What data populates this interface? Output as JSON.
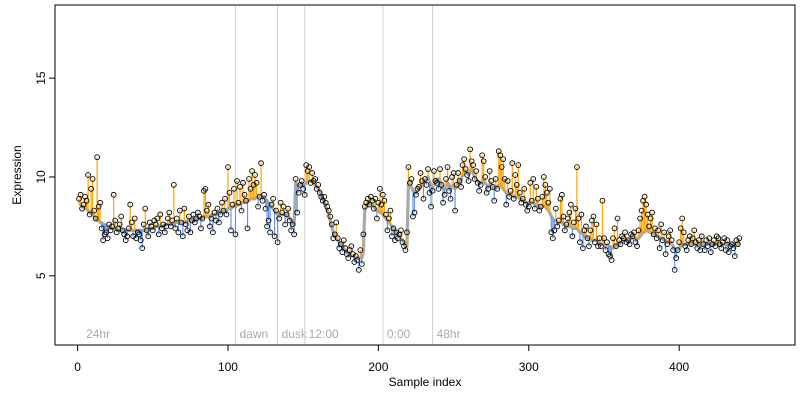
{
  "chart_data": {
    "type": "scatter",
    "title": "",
    "xlabel": "Sample index",
    "ylabel": "Expression",
    "xlim": [
      -15,
      477
    ],
    "ylim": [
      1.5,
      18.7
    ],
    "x_ticks": [
      0,
      100,
      200,
      300,
      400
    ],
    "x_tick_labels": [
      "0",
      "100",
      "200",
      "300",
      "400"
    ],
    "y_ticks": [
      5,
      10,
      15
    ],
    "y_tick_labels": [
      "5",
      "10",
      "15"
    ],
    "grid": false,
    "legend": "none",
    "phase_markers": [
      {
        "x": 3,
        "label": "24hr",
        "line": false
      },
      {
        "x": 105,
        "label": "dawn",
        "line": true
      },
      {
        "x": 133,
        "label": "dusk",
        "line": true
      },
      {
        "x": 151,
        "label": "12:00",
        "line": true
      },
      {
        "x": 203,
        "label": "0:00",
        "line": true
      },
      {
        "x": 236,
        "label": "48hr",
        "line": true
      }
    ],
    "series": [
      {
        "role": "observed",
        "render": "circles",
        "x_start": 1,
        "x_step": 1,
        "values": [
          8.9,
          9.1,
          8.4,
          8.6,
          9.0,
          8.8,
          10.1,
          8.1,
          9.4,
          9.9,
          8.3,
          7.9,
          11.0,
          8.5,
          8.7,
          7.4,
          6.8,
          7.1,
          7.2,
          6.9,
          7.6,
          7.3,
          7.5,
          9.1,
          7.8,
          7.2,
          7.4,
          7.6,
          8.0,
          7.3,
          7.1,
          6.8,
          7.0,
          7.4,
          8.6,
          7.7,
          7.0,
          7.9,
          6.9,
          7.2,
          7.1,
          6.8,
          6.4,
          7.6,
          8.4,
          7.3,
          7.0,
          7.7,
          7.5,
          7.3,
          7.8,
          7.6,
          7.9,
          7.1,
          8.1,
          7.4,
          7.6,
          7.2,
          7.5,
          7.9,
          8.2,
          7.5,
          7.8,
          9.6,
          7.4,
          7.9,
          7.2,
          8.3,
          7.7,
          7.0,
          8.4,
          7.6,
          7.3,
          8.0,
          7.2,
          7.8,
          8.1,
          7.7,
          7.9,
          8.2,
          8.0,
          7.4,
          7.9,
          9.3,
          9.4,
          8.3,
          8.6,
          7.5,
          7.9,
          7.2,
          8.2,
          7.8,
          8.4,
          7.7,
          8.1,
          8.7,
          8.3,
          8.9,
          8.1,
          10.5,
          9.2,
          7.3,
          8.6,
          9.4,
          7.1,
          9.8,
          8.7,
          9.5,
          8.3,
          9.7,
          9.1,
          8.8,
          7.4,
          9.9,
          9.4,
          10.3,
          9.6,
          10.1,
          9.7,
          8.5,
          9.0,
          10.7,
          8.8,
          9.1,
          8.4,
          7.5,
          7.8,
          7.2,
          8.6,
          8.9,
          7.0,
          8.3,
          6.7,
          7.9,
          8.7,
          8.2,
          8.5,
          7.6,
          8.1,
          8.4,
          7.8,
          7.3,
          7.6,
          7.1,
          9.9,
          8.2,
          9.2,
          9.6,
          9.8,
          9.4,
          9.1,
          10.6,
          10.3,
          10.5,
          9.7,
          10.2,
          9.8,
          9.9,
          9.4,
          9.6,
          9.2,
          9.0,
          8.8,
          9.0,
          8.7,
          8.5,
          8.3,
          8.0,
          7.6,
          6.9,
          7.1,
          7.7,
          6.9,
          6.4,
          6.6,
          6.2,
          6.8,
          6.4,
          6.1,
          5.9,
          6.3,
          6.5,
          6.1,
          5.7,
          6.0,
          5.8,
          5.3,
          6.3,
          5.6,
          7.1,
          8.5,
          8.7,
          8.9,
          8.6,
          9.0,
          8.8,
          8.4,
          8.9,
          7.9,
          8.7,
          9.4,
          8.6,
          9.1,
          8.8,
          8.1,
          7.3,
          7.9,
          8.3,
          7.0,
          7.4,
          6.8,
          7.2,
          6.9,
          7.1,
          7.3,
          6.7,
          6.5,
          6.3,
          7.2,
          10.5,
          9.7,
          9.9,
          8.0,
          8.2,
          9.1,
          9.4,
          9.5,
          10.2,
          9.8,
          8.9,
          9.9,
          9.6,
          10.4,
          9.2,
          8.5,
          9.3,
          10.3,
          9.8,
          9.7,
          9.4,
          10.4,
          9.6,
          8.7,
          9.1,
          9.9,
          10.5,
          9.3,
          8.9,
          10.0,
          10.2,
          8.3,
          9.6,
          10.2,
          9.8,
          9.5,
          10.6,
          10.9,
          10.4,
          10.1,
          9.8,
          11.4,
          10.8,
          10.6,
          9.9,
          10.3,
          9.7,
          9.3,
          9.6,
          11.1,
          10.8,
          10.0,
          9.2,
          9.4,
          10.3,
          9.8,
          9.5,
          8.8,
          9.9,
          9.4,
          11.3,
          11.1,
          10.5,
          10.9,
          9.9,
          8.6,
          9.8,
          9.0,
          9.3,
          10.7,
          8.9,
          10.1,
          9.6,
          10.6,
          9.2,
          8.7,
          8.9,
          9.4,
          8.6,
          8.3,
          8.5,
          9.7,
          8.8,
          9.9,
          8.4,
          9.5,
          8.9,
          8.3,
          8.5,
          9.0,
          10.0,
          9.6,
          9.2,
          8.7,
          9.4,
          7.2,
          6.9,
          7.3,
          8.4,
          7.5,
          7.8,
          8.9,
          9.1,
          8.0,
          7.3,
          7.6,
          7.9,
          8.2,
          8.6,
          7.0,
          7.7,
          8.4,
          10.5,
          7.9,
          6.7,
          8.1,
          6.4,
          7.3,
          7.5,
          6.9,
          6.5,
          7.3,
          7.8,
          8.0,
          6.7,
          7.6,
          6.5,
          6.9,
          6.5,
          8.8,
          6.9,
          6.3,
          6.7,
          6.1,
          6.0,
          5.8,
          6.9,
          7.4,
          6.5,
          7.9,
          6.8,
          6.6,
          7.0,
          6.9,
          7.2,
          6.7,
          6.8,
          6.6,
          7.1,
          7.0,
          7.2,
          6.7,
          6.5,
          7.3,
          7.9,
          8.3,
          8.8,
          9.0,
          8.6,
          8.1,
          7.5,
          7.9,
          8.2,
          7.1,
          7.4,
          6.9,
          7.3,
          6.4,
          7.6,
          6.8,
          7.2,
          6.1,
          6.6,
          7.0,
          7.3,
          6.8,
          6.3,
          5.3,
          5.9,
          6.3,
          6.7,
          7.4,
          7.9,
          7.2,
          6.5,
          6.3,
          6.8,
          7.0,
          6.6,
          6.9,
          7.3,
          6.7,
          6.4,
          6.8,
          6.3,
          7.0,
          6.6,
          6.3,
          6.8,
          6.5,
          6.9,
          6.2,
          6.6,
          6.8,
          6.5,
          7.0,
          6.9,
          6.6,
          6.4,
          6.7,
          6.9,
          6.3,
          6.8,
          6.2,
          6.5,
          6.6,
          6.4,
          6.0,
          6.8,
          6.6,
          6.9
        ]
      },
      {
        "role": "fitted",
        "render": "line",
        "x_start": 1,
        "x_step": 1,
        "values": [
          8.6,
          8.6,
          8.5,
          8.5,
          8.4,
          8.4,
          8.3,
          8.2,
          8.2,
          8.1,
          8.0,
          7.9,
          7.8,
          7.8,
          7.7,
          7.7,
          7.6,
          7.6,
          7.5,
          7.5,
          7.5,
          7.4,
          7.4,
          7.4,
          7.4,
          7.4,
          7.3,
          7.3,
          7.3,
          7.3,
          7.3,
          7.3,
          7.3,
          7.3,
          7.3,
          7.3,
          7.3,
          7.3,
          7.3,
          7.3,
          7.3,
          7.3,
          7.3,
          7.3,
          7.3,
          7.3,
          7.4,
          7.4,
          7.4,
          7.4,
          7.4,
          7.5,
          7.5,
          7.5,
          7.5,
          7.5,
          7.5,
          7.6,
          7.6,
          7.6,
          7.6,
          7.6,
          7.6,
          7.6,
          7.7,
          7.7,
          7.7,
          7.7,
          7.7,
          7.7,
          7.7,
          7.7,
          7.8,
          7.8,
          7.8,
          7.8,
          7.8,
          7.8,
          7.9,
          7.9,
          7.9,
          7.9,
          7.9,
          8.0,
          8.0,
          8.0,
          8.0,
          8.0,
          8.1,
          8.1,
          8.1,
          8.1,
          8.2,
          8.2,
          8.2,
          8.2,
          8.3,
          8.3,
          8.3,
          8.4,
          8.4,
          8.4,
          8.5,
          8.5,
          8.5,
          8.6,
          8.6,
          8.6,
          8.7,
          8.7,
          8.7,
          8.8,
          8.8,
          8.8,
          8.9,
          8.9,
          8.9,
          8.9,
          9.0,
          9.0,
          9.0,
          9.0,
          9.0,
          9.0,
          8.9,
          8.8,
          8.7,
          8.6,
          8.5,
          8.4,
          8.3,
          8.2,
          8.1,
          8.1,
          8.1,
          8.1,
          8.1,
          8.1,
          8.1,
          8.0,
          7.9,
          7.8,
          7.7,
          7.6,
          9.7,
          9.6,
          9.6,
          9.6,
          9.6,
          9.6,
          9.6,
          9.7,
          9.8,
          9.8,
          9.8,
          9.8,
          9.7,
          9.6,
          9.5,
          9.4,
          9.3,
          9.1,
          8.9,
          8.7,
          8.5,
          8.3,
          8.1,
          7.8,
          7.5,
          7.2,
          7.0,
          6.9,
          6.8,
          6.7,
          6.6,
          6.5,
          6.4,
          6.3,
          6.2,
          6.1,
          6.1,
          6.0,
          6.0,
          6.0,
          5.9,
          5.9,
          5.9,
          5.9,
          5.9,
          6.2,
          8.4,
          8.5,
          8.6,
          8.6,
          8.7,
          8.6,
          8.5,
          8.4,
          8.3,
          8.3,
          8.2,
          8.2,
          8.1,
          8.0,
          7.9,
          7.8,
          7.7,
          7.6,
          7.5,
          7.4,
          7.3,
          7.2,
          7.1,
          7.0,
          6.9,
          6.8,
          6.7,
          6.5,
          6.5,
          9.7,
          9.6,
          9.5,
          9.3,
          9.2,
          9.2,
          9.3,
          9.4,
          9.5,
          9.6,
          9.7,
          9.8,
          9.9,
          10.0,
          9.8,
          9.6,
          9.5,
          9.6,
          9.8,
          9.9,
          9.9,
          9.8,
          9.6,
          9.4,
          9.4,
          9.5,
          9.7,
          9.6,
          9.4,
          9.5,
          9.6,
          9.4,
          9.5,
          9.7,
          9.8,
          9.9,
          10.1,
          10.3,
          10.3,
          10.2,
          10.1,
          10.3,
          10.4,
          10.2,
          10.0,
          9.9,
          9.8,
          9.7,
          9.7,
          9.8,
          9.8,
          9.7,
          9.6,
          9.5,
          9.6,
          9.6,
          9.5,
          9.4,
          9.4,
          9.5,
          9.6,
          9.6,
          9.5,
          9.4,
          9.3,
          9.2,
          9.2,
          9.1,
          9.1,
          9.1,
          9.0,
          9.0,
          9.0,
          9.0,
          8.9,
          8.9,
          8.8,
          8.8,
          8.7,
          8.7,
          8.7,
          8.7,
          8.7,
          8.7,
          8.6,
          8.6,
          8.6,
          8.5,
          8.5,
          8.5,
          8.5,
          8.5,
          8.4,
          8.3,
          8.2,
          8.0,
          7.9,
          7.8,
          7.8,
          7.7,
          7.7,
          7.7,
          7.7,
          7.6,
          7.6,
          7.5,
          7.5,
          7.5,
          7.5,
          7.4,
          7.4,
          7.4,
          7.4,
          7.3,
          7.2,
          7.2,
          7.1,
          7.0,
          7.0,
          6.9,
          6.9,
          6.8,
          6.8,
          6.8,
          6.8,
          6.8,
          6.7,
          6.7,
          6.6,
          6.6,
          6.6,
          6.5,
          6.5,
          6.5,
          6.5,
          6.4,
          6.4,
          6.5,
          6.5,
          6.6,
          6.6,
          6.7,
          6.7,
          6.8,
          6.8,
          6.8,
          6.8,
          6.8,
          6.9,
          6.9,
          6.9,
          6.9,
          6.9,
          6.9,
          7.0,
          7.1,
          7.2,
          7.2,
          7.3,
          7.3,
          7.2,
          7.2,
          7.2,
          7.1,
          7.1,
          7.0,
          7.0,
          6.9,
          6.9,
          6.9,
          6.8,
          6.8,
          6.7,
          6.7,
          6.7,
          6.6,
          6.5,
          6.4,
          6.3,
          6.3,
          6.4,
          6.5,
          6.6,
          6.6,
          6.6,
          6.6,
          6.6,
          6.6,
          6.6,
          6.6,
          6.6,
          6.6,
          6.6,
          6.6,
          6.6,
          6.6,
          6.6,
          6.6,
          6.6,
          6.6,
          6.6,
          6.6,
          6.6,
          6.6,
          6.6,
          6.6,
          6.6,
          6.6,
          6.6,
          6.6,
          6.6,
          6.6,
          6.6,
          6.6,
          6.6,
          6.6,
          6.6,
          6.6,
          6.6,
          6.6,
          6.6
        ]
      }
    ],
    "colors": {
      "fitted_line": "#a9a9a9",
      "residual_above": "#ffa500",
      "residual_below": "#6495ed",
      "point_stroke": "#000000",
      "phase_line": "#d3d3d3",
      "phase_label": "#a9a9a9",
      "axis": "#000000"
    }
  }
}
